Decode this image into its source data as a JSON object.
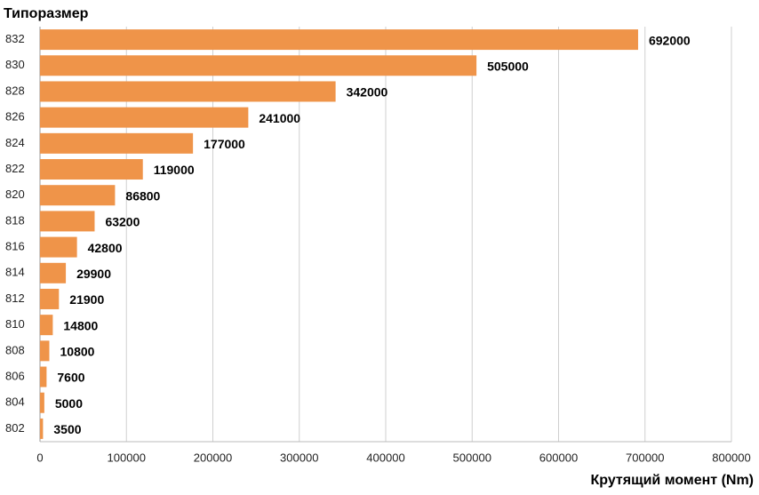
{
  "chart_data": {
    "type": "bar",
    "orientation": "horizontal",
    "y_label": "Типоразмер",
    "x_label": "Крутящий момент (Nm)",
    "categories": [
      "832",
      "830",
      "828",
      "826",
      "824",
      "822",
      "820",
      "818",
      "816",
      "814",
      "812",
      "810",
      "808",
      "806",
      "804",
      "802"
    ],
    "values": [
      692000,
      505000,
      342000,
      241000,
      177000,
      119000,
      86800,
      63200,
      42800,
      29900,
      21900,
      14800,
      10800,
      7600,
      5000,
      3500
    ],
    "color": "#ef9449",
    "xlim": [
      0,
      800000
    ],
    "xticks": [
      0,
      100000,
      200000,
      300000,
      400000,
      500000,
      600000,
      700000,
      800000
    ],
    "grid": true
  }
}
